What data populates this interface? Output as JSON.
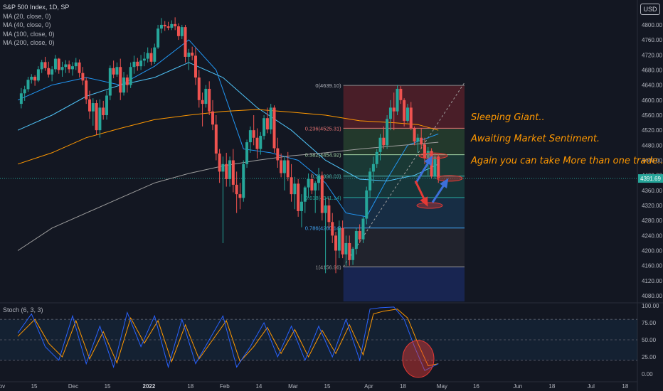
{
  "legend": {
    "title": "S&P 500 Index, 1D, SP",
    "lines": [
      "MA (20, close, 0)",
      "MA (40, close, 0)",
      "MA (100, close, 0)",
      "MA (200, close, 0)"
    ]
  },
  "currency_label": "USD",
  "stoch_label": "Stoch (6, 3, 3)",
  "annotations": [
    "Sleeping Giant..",
    "Awaiting Market Sentiment.",
    "Again you can take More than one trade.."
  ],
  "colors": {
    "background": "#131722",
    "up": "#26a69a",
    "down": "#ef5350",
    "ma20": "#2196f3",
    "ma40": "#4fc3f7",
    "ma100": "#ff9800",
    "ma200": "#9e9e9e",
    "stoch_k": "#2962ff",
    "stoch_d": "#ff9800",
    "annotation": "#ff9800",
    "arrow_up": "#3d6fd9",
    "arrow_down": "#e53935"
  },
  "chart_data": {
    "type": "candlestick",
    "symbol": "S&P 500 Index, 1D, SP",
    "price_axis": {
      "range": [
        4065,
        4866
      ],
      "ticks": [
        "4800.00",
        "4760.00",
        "4720.00",
        "4680.00",
        "4640.00",
        "4600.00",
        "4560.00",
        "4520.00",
        "4480.00",
        "4440.00",
        "4400.00",
        "4360.00",
        "4320.00",
        "4280.00",
        "4240.00",
        "4200.00",
        "4160.00",
        "4120.00",
        "4080.00"
      ],
      "last_price": "4391.69"
    },
    "time_axis": {
      "labels": [
        "Nov",
        "15",
        "Dec",
        "15",
        "2022",
        "18",
        "Feb",
        "14",
        "Mar",
        "15",
        "Apr",
        "18",
        "May",
        "16",
        "Jun",
        "18",
        "Jul",
        "18"
      ],
      "range_days": [
        0,
        261
      ]
    },
    "candles": [
      [
        1,
        4590,
        4632,
        4578,
        4618
      ],
      [
        2,
        4618,
        4638,
        4598,
        4629
      ],
      [
        3,
        4629,
        4662,
        4622,
        4654
      ],
      [
        4,
        4654,
        4669,
        4644,
        4662
      ],
      [
        5,
        4662,
        4666,
        4638,
        4652
      ],
      [
        6,
        4652,
        4690,
        4648,
        4682
      ],
      [
        7,
        4682,
        4707,
        4672,
        4701
      ],
      [
        8,
        4701,
        4715,
        4678,
        4685
      ],
      [
        9,
        4685,
        4702,
        4660,
        4668
      ],
      [
        10,
        4668,
        4690,
        4650,
        4682
      ],
      [
        11,
        4682,
        4720,
        4674,
        4710
      ],
      [
        12,
        4710,
        4712,
        4670,
        4680
      ],
      [
        13,
        4680,
        4702,
        4662,
        4688
      ],
      [
        14,
        4688,
        4706,
        4672,
        4695
      ],
      [
        15,
        4695,
        4705,
        4672,
        4682
      ],
      [
        16,
        4682,
        4701,
        4665,
        4690
      ],
      [
        17,
        4690,
        4712,
        4680,
        4700
      ],
      [
        18,
        4700,
        4708,
        4660,
        4672
      ],
      [
        19,
        4672,
        4688,
        4640,
        4652
      ],
      [
        20,
        4652,
        4660,
        4590,
        4602
      ],
      [
        21,
        4602,
        4625,
        4550,
        4570
      ],
      [
        22,
        4570,
        4605,
        4532,
        4592
      ],
      [
        23,
        4592,
        4600,
        4508,
        4520
      ],
      [
        24,
        4520,
        4602,
        4500,
        4580
      ],
      [
        25,
        4580,
        4598,
        4548,
        4560
      ],
      [
        26,
        4560,
        4625,
        4548,
        4612
      ],
      [
        27,
        4612,
        4692,
        4600,
        4685
      ],
      [
        28,
        4685,
        4705,
        4658,
        4668
      ],
      [
        29,
        4668,
        4700,
        4662,
        4688
      ],
      [
        30,
        4688,
        4710,
        4600,
        4620
      ],
      [
        31,
        4620,
        4675,
        4612,
        4660
      ],
      [
        32,
        4660,
        4668,
        4620,
        4640
      ],
      [
        33,
        4640,
        4700,
        4632,
        4688
      ],
      [
        34,
        4688,
        4718,
        4670,
        4702
      ],
      [
        35,
        4702,
        4712,
        4678,
        4690
      ],
      [
        36,
        4690,
        4720,
        4680,
        4705
      ],
      [
        37,
        4705,
        4728,
        4690,
        4710
      ],
      [
        38,
        4710,
        4740,
        4700,
        4725
      ],
      [
        39,
        4725,
        4738,
        4692,
        4702
      ],
      [
        40,
        4702,
        4750,
        4696,
        4740
      ],
      [
        41,
        4740,
        4800,
        4736,
        4790
      ],
      [
        42,
        4790,
        4818,
        4778,
        4800
      ],
      [
        43,
        4800,
        4810,
        4784,
        4796
      ],
      [
        44,
        4796,
        4808,
        4786,
        4792
      ],
      [
        45,
        4792,
        4812,
        4786,
        4802
      ],
      [
        46,
        4802,
        4820,
        4786,
        4796
      ],
      [
        47,
        4796,
        4804,
        4760,
        4770
      ],
      [
        48,
        4770,
        4800,
        4762,
        4794
      ],
      [
        49,
        4794,
        4800,
        4700,
        4715
      ],
      [
        50,
        4715,
        4736,
        4680,
        4726
      ],
      [
        51,
        4726,
        4742,
        4706,
        4718
      ],
      [
        52,
        4718,
        4740,
        4640,
        4660
      ],
      [
        53,
        4660,
        4680,
        4580,
        4600
      ],
      [
        54,
        4600,
        4620,
        4530,
        4590
      ],
      [
        55,
        4590,
        4640,
        4580,
        4630
      ],
      [
        56,
        4630,
        4650,
        4560,
        4570
      ],
      [
        57,
        4570,
        4600,
        4520,
        4535
      ],
      [
        58,
        4535,
        4560,
        4440,
        4458
      ],
      [
        59,
        4458,
        4470,
        4380,
        4410
      ],
      [
        60,
        4410,
        4450,
        4220,
        4430
      ],
      [
        61,
        4430,
        4460,
        4370,
        4390
      ],
      [
        62,
        4390,
        4450,
        4370,
        4440
      ],
      [
        63,
        4440,
        4470,
        4355,
        4375
      ],
      [
        64,
        4375,
        4410,
        4300,
        4350
      ],
      [
        65,
        4350,
        4380,
        4310,
        4340
      ],
      [
        66,
        4340,
        4440,
        4330,
        4430
      ],
      [
        67,
        4430,
        4495,
        4420,
        4488
      ],
      [
        68,
        4488,
        4530,
        4460,
        4520
      ],
      [
        69,
        4520,
        4560,
        4480,
        4500
      ],
      [
        70,
        4500,
        4525,
        4445,
        4470
      ],
      [
        71,
        4470,
        4515,
        4455,
        4505
      ],
      [
        72,
        4505,
        4560,
        4495,
        4552
      ],
      [
        73,
        4552,
        4580,
        4512,
        4522
      ],
      [
        74,
        4522,
        4590,
        4510,
        4580
      ],
      [
        75,
        4580,
        4586,
        4460,
        4472
      ],
      [
        76,
        4472,
        4500,
        4420,
        4440
      ],
      [
        77,
        4440,
        4458,
        4395,
        4406
      ],
      [
        78,
        4406,
        4450,
        4360,
        4440
      ],
      [
        79,
        4440,
        4462,
        4385,
        4395
      ],
      [
        80,
        4395,
        4430,
        4330,
        4350
      ],
      [
        81,
        4350,
        4396,
        4310,
        4378
      ],
      [
        82,
        4378,
        4390,
        4290,
        4305
      ],
      [
        83,
        4305,
        4350,
        4262,
        4330
      ],
      [
        84,
        4330,
        4372,
        4300,
        4368
      ],
      [
        85,
        4368,
        4405,
        4340,
        4390
      ],
      [
        86,
        4390,
        4405,
        4350,
        4360
      ],
      [
        87,
        4360,
        4385,
        4300,
        4380
      ],
      [
        88,
        4380,
        4420,
        4360,
        4400
      ],
      [
        89,
        4400,
        4410,
        4280,
        4300
      ],
      [
        90,
        4300,
        4340,
        4140,
        4320
      ],
      [
        91,
        4320,
        4340,
        4260,
        4276
      ],
      [
        92,
        4276,
        4300,
        4220,
        4240
      ],
      [
        93,
        4240,
        4250,
        4140,
        4200
      ],
      [
        94,
        4200,
        4280,
        4180,
        4260
      ],
      [
        95,
        4260,
        4280,
        4180,
        4190
      ],
      [
        96,
        4190,
        4240,
        4160,
        4220
      ],
      [
        97,
        4220,
        4240,
        4160,
        4175
      ],
      [
        98,
        4175,
        4210,
        4162,
        4205
      ],
      [
        99,
        4205,
        4260,
        4190,
        4252
      ],
      [
        100,
        4252,
        4270,
        4220,
        4230
      ],
      [
        101,
        4230,
        4290,
        4220,
        4285
      ],
      [
        102,
        4285,
        4370,
        4270,
        4360
      ],
      [
        103,
        4360,
        4420,
        4340,
        4410
      ],
      [
        104,
        4410,
        4450,
        4380,
        4430
      ],
      [
        105,
        4430,
        4470,
        4420,
        4462
      ],
      [
        106,
        4462,
        4510,
        4440,
        4500
      ],
      [
        107,
        4500,
        4530,
        4470,
        4480
      ],
      [
        108,
        4480,
        4560,
        4470,
        4550
      ],
      [
        109,
        4550,
        4600,
        4520,
        4580
      ],
      [
        110,
        4580,
        4620,
        4520,
        4570
      ],
      [
        111,
        4570,
        4640,
        4560,
        4630
      ],
      [
        112,
        4630,
        4637,
        4590,
        4600
      ],
      [
        113,
        4600,
        4605,
        4530,
        4545
      ],
      [
        114,
        4545,
        4590,
        4540,
        4580
      ],
      [
        115,
        4580,
        4595,
        4520,
        4525
      ],
      [
        116,
        4525,
        4530,
        4480,
        4490
      ],
      [
        117,
        4490,
        4510,
        4460,
        4500
      ],
      [
        118,
        4500,
        4525,
        4470,
        4482
      ],
      [
        119,
        4482,
        4500,
        4430,
        4445
      ],
      [
        120,
        4445,
        4475,
        4400,
        4465
      ],
      [
        121,
        4465,
        4472,
        4392,
        4397
      ],
      [
        122,
        4397,
        4460,
        4390,
        4450
      ],
      [
        123,
        4450,
        4455,
        4380,
        4393
      ]
    ],
    "moving_averages": [
      {
        "name": "MA (20, close, 0)",
        "values": [
          [
            0,
            4600
          ],
          [
            10,
            4640
          ],
          [
            20,
            4660
          ],
          [
            30,
            4640
          ],
          [
            40,
            4690
          ],
          [
            50,
            4760
          ],
          [
            58,
            4680
          ],
          [
            66,
            4470
          ],
          [
            74,
            4460
          ],
          [
            82,
            4440
          ],
          [
            90,
            4380
          ],
          [
            96,
            4300
          ],
          [
            102,
            4290
          ],
          [
            108,
            4390
          ],
          [
            114,
            4480
          ],
          [
            120,
            4500
          ],
          [
            123,
            4510
          ]
        ]
      },
      {
        "name": "MA (40, close, 0)",
        "values": [
          [
            0,
            4520
          ],
          [
            10,
            4560
          ],
          [
            20,
            4610
          ],
          [
            30,
            4640
          ],
          [
            40,
            4660
          ],
          [
            50,
            4700
          ],
          [
            60,
            4660
          ],
          [
            70,
            4580
          ],
          [
            80,
            4520
          ],
          [
            90,
            4440
          ],
          [
            100,
            4390
          ],
          [
            108,
            4385
          ],
          [
            116,
            4400
          ],
          [
            123,
            4430
          ]
        ]
      },
      {
        "name": "MA (100, close, 0)",
        "values": [
          [
            0,
            4430
          ],
          [
            10,
            4460
          ],
          [
            20,
            4500
          ],
          [
            30,
            4525
          ],
          [
            40,
            4548
          ],
          [
            50,
            4560
          ],
          [
            60,
            4570
          ],
          [
            70,
            4575
          ],
          [
            80,
            4568
          ],
          [
            90,
            4560
          ],
          [
            100,
            4545
          ],
          [
            110,
            4540
          ],
          [
            117,
            4535
          ],
          [
            123,
            4520
          ]
        ]
      },
      {
        "name": "MA (200, close, 0)",
        "values": [
          [
            0,
            4200
          ],
          [
            10,
            4260
          ],
          [
            20,
            4300
          ],
          [
            30,
            4340
          ],
          [
            40,
            4380
          ],
          [
            50,
            4405
          ],
          [
            60,
            4425
          ],
          [
            70,
            4440
          ],
          [
            80,
            4452
          ],
          [
            90,
            4460
          ],
          [
            100,
            4470
          ],
          [
            110,
            4478
          ],
          [
            123,
            4488
          ]
        ]
      }
    ],
    "fibonacci": {
      "levels": [
        {
          "label": "0(4639.10)",
          "price": 4639.1
        },
        {
          "label": "0.236(4525.31)",
          "price": 4525.31
        },
        {
          "label": "0.382(4454.92)",
          "price": 4454.92
        },
        {
          "label": "0.5(4398.03)",
          "price": 4398.03
        },
        {
          "label": "0.618(4341.14)",
          "price": 4341.14
        },
        {
          "label": "0.786(4260.14)",
          "price": 4260.14
        },
        {
          "label": "1(4156.96)",
          "price": 4156.96
        }
      ],
      "x_range": [
        95,
        125
      ]
    },
    "stochastic": {
      "name": "Stoch (6, 3, 3)",
      "ticks": [
        "100.00",
        "75.00",
        "50.00",
        "25.00",
        "0.00"
      ],
      "bands": [
        20,
        80
      ],
      "k": [
        [
          0,
          60
        ],
        [
          4,
          88
        ],
        [
          8,
          40
        ],
        [
          12,
          20
        ],
        [
          16,
          85
        ],
        [
          20,
          15
        ],
        [
          24,
          70
        ],
        [
          28,
          10
        ],
        [
          32,
          90
        ],
        [
          36,
          40
        ],
        [
          40,
          85
        ],
        [
          44,
          10
        ],
        [
          48,
          80
        ],
        [
          52,
          15
        ],
        [
          56,
          50
        ],
        [
          60,
          85
        ],
        [
          64,
          10
        ],
        [
          68,
          40
        ],
        [
          72,
          75
        ],
        [
          76,
          25
        ],
        [
          80,
          70
        ],
        [
          84,
          20
        ],
        [
          88,
          70
        ],
        [
          92,
          25
        ],
        [
          96,
          80
        ],
        [
          100,
          20
        ],
        [
          103,
          95
        ],
        [
          106,
          97
        ],
        [
          110,
          98
        ],
        [
          113,
          80
        ],
        [
          116,
          40
        ],
        [
          119,
          5
        ],
        [
          121,
          10
        ],
        [
          123,
          15
        ]
      ],
      "d": [
        [
          0,
          55
        ],
        [
          5,
          80
        ],
        [
          9,
          45
        ],
        [
          13,
          25
        ],
        [
          17,
          78
        ],
        [
          21,
          22
        ],
        [
          25,
          62
        ],
        [
          29,
          16
        ],
        [
          33,
          82
        ],
        [
          37,
          45
        ],
        [
          41,
          78
        ],
        [
          45,
          18
        ],
        [
          49,
          72
        ],
        [
          53,
          22
        ],
        [
          57,
          50
        ],
        [
          61,
          78
        ],
        [
          65,
          18
        ],
        [
          69,
          40
        ],
        [
          73,
          68
        ],
        [
          77,
          30
        ],
        [
          81,
          65
        ],
        [
          85,
          25
        ],
        [
          89,
          64
        ],
        [
          93,
          30
        ],
        [
          97,
          72
        ],
        [
          101,
          28
        ],
        [
          104,
          88
        ],
        [
          107,
          92
        ],
        [
          111,
          95
        ],
        [
          114,
          82
        ],
        [
          117,
          45
        ],
        [
          120,
          12
        ],
        [
          123,
          15
        ]
      ]
    }
  }
}
